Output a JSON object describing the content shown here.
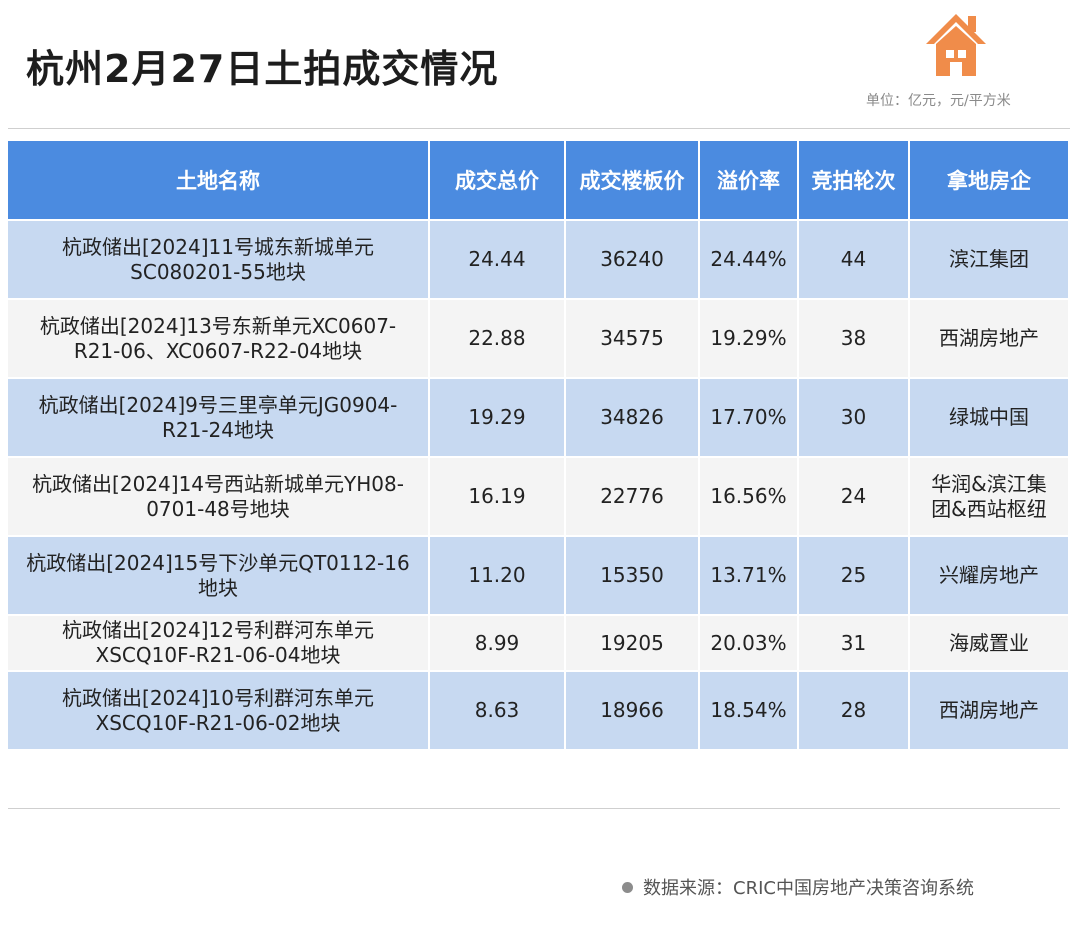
{
  "title": "杭州2月27日土拍成交情况",
  "unit_note": "单位：亿元，元/平方米",
  "icon": "house-icon",
  "colors": {
    "header_bg": "#4b8be0",
    "row_blue": "#c7d9f1",
    "row_white": "#f4f4f4",
    "icon_orange": "#f08c4a"
  },
  "table": {
    "headers": [
      "土地名称",
      "成交总价",
      "成交楼板价",
      "溢价率",
      "竞拍轮次",
      "拿地房企"
    ],
    "rows": [
      {
        "name_l1": "杭政储出[2024]11号城东新城单元",
        "name_l2": "SC080201-55地块",
        "total": "24.44",
        "floor_price": "36240",
        "premium": "24.44%",
        "rounds": "44",
        "company_l1": "滨江集团",
        "company_l2": ""
      },
      {
        "name_l1": "杭政储出[2024]13号东新单元XC0607-",
        "name_l2": "R21-06、XC0607-R22-04地块",
        "total": "22.88",
        "floor_price": "34575",
        "premium": "19.29%",
        "rounds": "38",
        "company_l1": "西湖房地产",
        "company_l2": ""
      },
      {
        "name_l1": "杭政储出[2024]9号三里亭单元JG0904-",
        "name_l2": "R21-24地块",
        "total": "19.29",
        "floor_price": "34826",
        "premium": "17.70%",
        "rounds": "30",
        "company_l1": "绿城中国",
        "company_l2": ""
      },
      {
        "name_l1": "杭政储出[2024]14号西站新城单元YH08-",
        "name_l2": "0701-48号地块",
        "total": "16.19",
        "floor_price": "22776",
        "premium": "16.56%",
        "rounds": "24",
        "company_l1": "华润&滨江集",
        "company_l2": "团&西站枢纽"
      },
      {
        "name_l1": "杭政储出[2024]15号下沙单元QT0112-16",
        "name_l2": "地块",
        "total": "11.20",
        "floor_price": "15350",
        "premium": "13.71%",
        "rounds": "25",
        "company_l1": "兴耀房地产",
        "company_l2": ""
      },
      {
        "name_l1": "杭政储出[2024]12号利群河东单元",
        "name_l2": "XSCQ10F-R21-06-04地块",
        "total": "8.99",
        "floor_price": "19205",
        "premium": "20.03%",
        "rounds": "31",
        "company_l1": "海威置业",
        "company_l2": ""
      },
      {
        "name_l1": "杭政储出[2024]10号利群河东单元",
        "name_l2": "XSCQ10F-R21-06-02地块",
        "total": "8.63",
        "floor_price": "18966",
        "premium": "18.54%",
        "rounds": "28",
        "company_l1": "西湖房地产",
        "company_l2": ""
      }
    ]
  },
  "source": "数据来源：CRIC中国房地产决策咨询系统"
}
